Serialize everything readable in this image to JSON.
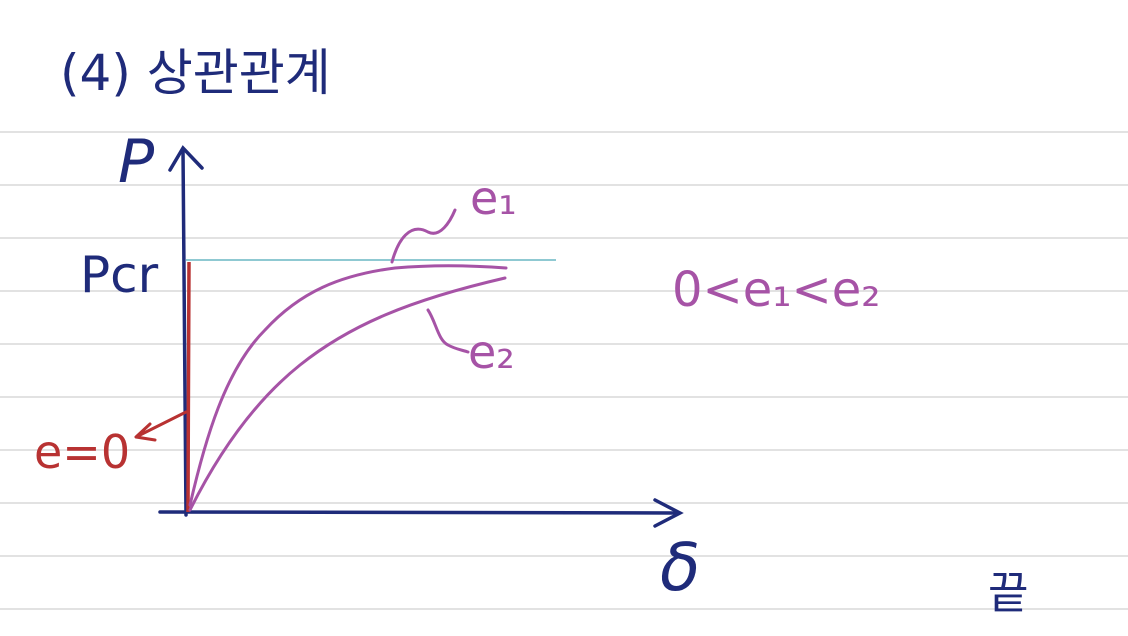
{
  "heading": "(4) 상관관계",
  "axes": {
    "y_label": "P",
    "x_label": "δ",
    "critical_load_label": "Pcr"
  },
  "curves": {
    "zero_label": "e=0",
    "e1_label": "e₁",
    "e2_label": "e₂"
  },
  "condition": "0<e₁<e₂",
  "end_mark": "끝",
  "colors": {
    "ink_navy": "#1f2b7a",
    "ink_purple": "#a653a6",
    "ink_red": "#b83232",
    "guide_teal": "#8fc9d2",
    "ruled_line": "#d9d9d9"
  }
}
